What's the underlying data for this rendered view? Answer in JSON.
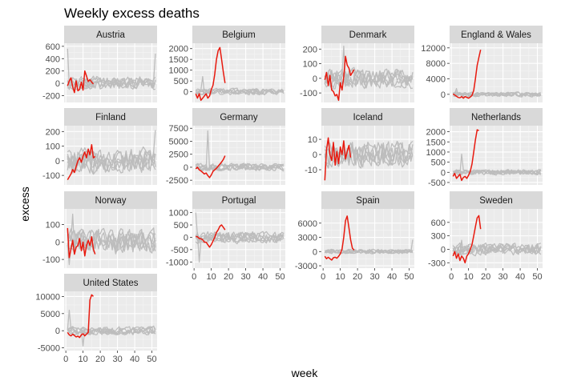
{
  "chart_data": {
    "type": "line",
    "title": "Weekly excess deaths",
    "xlabel": "week",
    "ylabel": "excess",
    "grid": true,
    "x_ticks": [
      0,
      10,
      20,
      30,
      40,
      50
    ],
    "xlim": [
      -1,
      53
    ],
    "background_series": {
      "color": "#bdbdbd",
      "count": 6
    },
    "highlight_series": {
      "color": "#e8190e"
    },
    "panels": [
      {
        "name": "Austria",
        "ylim": [
          -310,
          650
        ],
        "y_ticks": [
          -200,
          0,
          200,
          400,
          600
        ],
        "highlight": {
          "x": [
            1,
            2,
            3,
            4,
            5,
            6,
            7,
            8,
            9,
            10,
            11,
            12,
            13,
            14,
            15,
            16
          ],
          "y": [
            -40,
            40,
            90,
            -60,
            -150,
            40,
            -120,
            -100,
            20,
            -110,
            200,
            120,
            30,
            60,
            20,
            -10
          ]
        },
        "background_amp": 90,
        "outliers": [
          {
            "x": 1,
            "y": 560
          },
          {
            "x": 52,
            "y": 480
          }
        ]
      },
      {
        "name": "Belgium",
        "ylim": [
          -500,
          2250
        ],
        "y_ticks": [
          0,
          500,
          1000,
          1500,
          2000
        ],
        "highlight": {
          "x": [
            1,
            2,
            3,
            4,
            5,
            6,
            7,
            8,
            9,
            10,
            11,
            12,
            13,
            14,
            15,
            16,
            17,
            18
          ],
          "y": [
            -100,
            -300,
            -100,
            -400,
            -300,
            -200,
            -100,
            -300,
            -200,
            100,
            300,
            800,
            1500,
            1900,
            2050,
            1500,
            900,
            400
          ]
        },
        "background_amp": 120,
        "outliers": [
          {
            "x": 5,
            "y": 700
          }
        ]
      },
      {
        "name": "Denmark",
        "ylim": [
          -165,
          240
        ],
        "y_ticks": [
          -100,
          0,
          100,
          200
        ],
        "highlight": {
          "x": [
            1,
            2,
            3,
            4,
            5,
            6,
            7,
            8,
            9,
            10,
            11,
            12,
            13,
            14,
            15,
            16,
            17,
            18
          ],
          "y": [
            -10,
            40,
            -50,
            20,
            -80,
            -90,
            -120,
            -110,
            -150,
            -30,
            -80,
            10,
            150,
            90,
            70,
            20,
            40,
            60
          ]
        },
        "background_amp": 55,
        "outliers": [
          {
            "x": 12,
            "y": 220
          }
        ]
      },
      {
        "name": "England & Wales",
        "ylim": [
          -2100,
          13200
        ],
        "y_ticks": [
          0,
          4000,
          8000,
          12000
        ],
        "highlight": {
          "x": [
            1,
            2,
            3,
            4,
            5,
            6,
            7,
            8,
            9,
            10,
            11,
            12,
            13,
            14,
            15,
            16,
            17
          ],
          "y": [
            100,
            -200,
            -500,
            -800,
            -900,
            -600,
            -1000,
            -600,
            -800,
            -1000,
            -700,
            -300,
            1000,
            4000,
            7500,
            9500,
            11500
          ]
        },
        "background_amp": 500,
        "outliers": [
          {
            "x": 3,
            "y": 1500
          }
        ]
      },
      {
        "name": "Finland",
        "ylim": [
          -165,
          240
        ],
        "y_ticks": [
          -100,
          0,
          100,
          200
        ],
        "highlight": {
          "x": [
            1,
            2,
            3,
            4,
            5,
            6,
            7,
            8,
            9,
            10,
            11,
            12,
            13,
            14,
            15,
            16,
            17
          ],
          "y": [
            -130,
            -110,
            -90,
            -60,
            -80,
            -40,
            0,
            20,
            -10,
            30,
            60,
            20,
            80,
            40,
            110,
            20,
            30
          ]
        },
        "background_amp": 70,
        "outliers": [
          {
            "x": 52,
            "y": 210
          }
        ]
      },
      {
        "name": "Germany",
        "ylim": [
          -3400,
          8000
        ],
        "y_ticks": [
          -2500,
          0,
          2500,
          5000,
          7500
        ],
        "highlight": {
          "x": [
            1,
            2,
            3,
            4,
            5,
            6,
            7,
            8,
            9,
            10,
            11,
            12,
            13,
            14,
            15,
            16,
            17,
            18
          ],
          "y": [
            -300,
            0,
            -500,
            -700,
            -1000,
            -1300,
            -1100,
            -1600,
            -2000,
            -1500,
            -800,
            -500,
            -200,
            200,
            600,
            1000,
            1500,
            2200
          ]
        },
        "background_amp": 600,
        "outliers": [
          {
            "x": 8,
            "y": 7000
          }
        ]
      },
      {
        "name": "Iceland",
        "ylim": [
          -20,
          19
        ],
        "y_ticks": [
          -10,
          0,
          10
        ],
        "highlight": {
          "x": [
            1,
            2,
            3,
            4,
            5,
            6,
            7,
            8,
            9,
            10,
            11,
            12,
            13,
            14,
            15,
            16
          ],
          "y": [
            -17,
            3,
            11,
            0,
            -4,
            8,
            -7,
            2,
            -6,
            5,
            0,
            9,
            -3,
            2,
            6,
            -2
          ]
        },
        "background_amp": 7,
        "outliers": []
      },
      {
        "name": "Netherlands",
        "ylim": [
          -620,
          2300
        ],
        "y_ticks": [
          -500,
          0,
          500,
          1000,
          1500,
          2000
        ],
        "highlight": {
          "x": [
            1,
            2,
            3,
            4,
            5,
            6,
            7,
            8,
            9,
            10,
            11,
            12,
            13,
            14,
            15,
            16
          ],
          "y": [
            -200,
            -50,
            -300,
            -200,
            -100,
            -400,
            -250,
            -200,
            -300,
            -150,
            50,
            400,
            1000,
            1600,
            2100,
            2050
          ]
        },
        "background_amp": 110,
        "outliers": [
          {
            "x": 6,
            "y": 900
          }
        ]
      },
      {
        "name": "Norway",
        "ylim": [
          -150,
          190
        ],
        "y_ticks": [
          -100,
          0,
          100
        ],
        "highlight": {
          "x": [
            1,
            2,
            3,
            4,
            5,
            6,
            7,
            8,
            9,
            10,
            11,
            12,
            13,
            14,
            15,
            16,
            17
          ],
          "y": [
            80,
            -90,
            -40,
            10,
            -70,
            -30,
            -20,
            20,
            -50,
            0,
            -80,
            -20,
            10,
            -20,
            30,
            -40,
            -70
          ]
        },
        "background_amp": 60,
        "outliers": [
          {
            "x": 4,
            "y": 160
          },
          {
            "x": 2,
            "y": -130
          }
        ]
      },
      {
        "name": "Portugal",
        "ylim": [
          -1250,
          1150
        ],
        "y_ticks": [
          -1000,
          -500,
          0,
          500,
          1000
        ],
        "highlight": {
          "x": [
            1,
            2,
            3,
            4,
            5,
            6,
            7,
            8,
            9,
            10,
            11,
            12,
            13,
            14,
            15,
            16,
            17,
            18
          ],
          "y": [
            30,
            20,
            -50,
            -60,
            -100,
            -200,
            -200,
            -300,
            -400,
            -300,
            -150,
            0,
            200,
            300,
            450,
            500,
            400,
            300
          ]
        },
        "background_amp": 200,
        "outliers": [
          {
            "x": 1,
            "y": 1000
          },
          {
            "x": 3,
            "y": -1000
          }
        ]
      },
      {
        "name": "Spain",
        "ylim": [
          -3500,
          9000
        ],
        "y_ticks": [
          -3000,
          0,
          3000,
          6000
        ],
        "highlight": {
          "x": [
            1,
            2,
            3,
            4,
            5,
            6,
            7,
            8,
            9,
            10,
            11,
            12,
            13,
            14,
            15,
            16,
            17,
            18
          ],
          "y": [
            -1000,
            -1500,
            -1200,
            -1500,
            -1800,
            -1300,
            -1200,
            -1400,
            -1000,
            -500,
            500,
            3000,
            6500,
            7500,
            5000,
            2500,
            700,
            300
          ]
        },
        "background_amp": 400,
        "outliers": [
          {
            "x": 52,
            "y": 2500
          }
        ]
      },
      {
        "name": "Sweden",
        "ylim": [
          -420,
          900
        ],
        "y_ticks": [
          -300,
          0,
          300,
          600
        ],
        "highlight": {
          "x": [
            1,
            2,
            3,
            4,
            5,
            6,
            7,
            8,
            9,
            10,
            11,
            12,
            13,
            14,
            15,
            16,
            17
          ],
          "y": [
            -150,
            -50,
            -200,
            -100,
            -250,
            -150,
            -200,
            -300,
            -150,
            -100,
            0,
            100,
            300,
            500,
            700,
            750,
            450
          ]
        },
        "background_amp": 110,
        "outliers": [
          {
            "x": 6,
            "y": 200
          }
        ]
      },
      {
        "name": "United States",
        "ylim": [
          -5800,
          11500
        ],
        "y_ticks": [
          -5000,
          0,
          5000,
          10000
        ],
        "highlight": {
          "x": [
            1,
            2,
            3,
            4,
            5,
            6,
            7,
            8,
            9,
            10,
            11,
            12,
            13,
            14,
            15,
            16
          ],
          "y": [
            -500,
            -1200,
            -1500,
            -1000,
            -1400,
            -1800,
            -1600,
            -2000,
            -1200,
            -900,
            -1500,
            -1000,
            -500,
            9000,
            10500,
            10000
          ]
        },
        "background_amp": 1000,
        "outliers": [
          {
            "x": 2,
            "y": 6000
          },
          {
            "x": 10,
            "y": -4500
          }
        ]
      }
    ]
  }
}
